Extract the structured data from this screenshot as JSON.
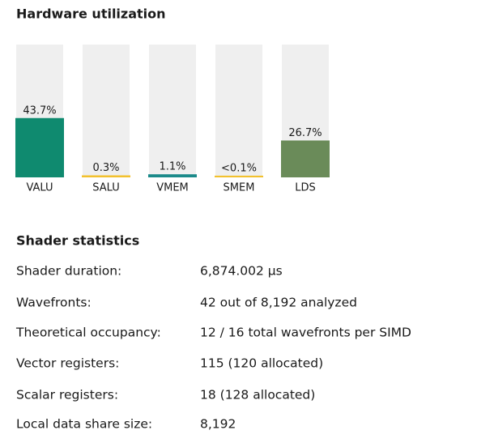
{
  "chart_data": {
    "type": "bar",
    "title": "Hardware utilization",
    "categories": [
      "VALU",
      "SALU",
      "VMEM",
      "SMEM",
      "LDS"
    ],
    "values": [
      43.7,
      0.3,
      1.1,
      0.05,
      26.7
    ],
    "value_labels": [
      "43.7%",
      "0.3%",
      "1.1%",
      "<0.1%",
      "26.7%"
    ],
    "colors": [
      "#0f8a6f",
      "#f2c12e",
      "#1b8a8a",
      "#f2c12e",
      "#6a8b59"
    ],
    "ylim": [
      0,
      100
    ]
  },
  "shader_statistics": {
    "title": "Shader statistics",
    "rows": [
      [
        "Shader duration:",
        "6,874.002 µs"
      ],
      [
        "Wavefronts:",
        "42 out of 8,192 analyzed"
      ],
      [
        "Theoretical occupancy:",
        "12 / 16 total wavefronts per SIMD"
      ],
      [
        "Vector registers:",
        "115 (120 allocated)"
      ],
      [
        "Scalar registers:",
        "18 (128 allocated)"
      ],
      [
        "Local data share size:",
        "8,192"
      ]
    ]
  }
}
